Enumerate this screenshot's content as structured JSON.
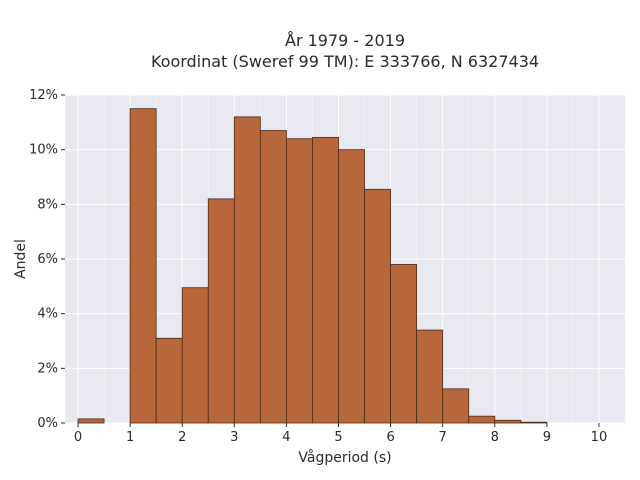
{
  "chart_data": {
    "type": "bar",
    "title_lines": [
      "År 1979 - 2019",
      "Koordinat (Sweref 99 TM): E 333766, N 6327434"
    ],
    "xlabel": "Vågperiod (s)",
    "ylabel": "Andel",
    "xlim": [
      -0.25,
      10.5
    ],
    "ylim": [
      0,
      12
    ],
    "x_ticks": [
      "0",
      "1",
      "2",
      "3",
      "4",
      "5",
      "6",
      "7",
      "8",
      "9",
      "10"
    ],
    "y_ticks": [
      "0%",
      "2%",
      "4%",
      "6%",
      "8%",
      "10%",
      "12%"
    ],
    "bin_width": 0.5,
    "bins": [
      {
        "x0": 0.0,
        "value": 0.15
      },
      {
        "x0": 1.0,
        "value": 11.5
      },
      {
        "x0": 1.5,
        "value": 3.1
      },
      {
        "x0": 2.0,
        "value": 4.95
      },
      {
        "x0": 2.5,
        "value": 8.2
      },
      {
        "x0": 3.0,
        "value": 11.2
      },
      {
        "x0": 3.5,
        "value": 10.7
      },
      {
        "x0": 4.0,
        "value": 10.4
      },
      {
        "x0": 4.5,
        "value": 10.45
      },
      {
        "x0": 5.0,
        "value": 10.0
      },
      {
        "x0": 5.5,
        "value": 8.55
      },
      {
        "x0": 6.0,
        "value": 5.8
      },
      {
        "x0": 6.5,
        "value": 3.4
      },
      {
        "x0": 7.0,
        "value": 1.25
      },
      {
        "x0": 7.5,
        "value": 0.25
      },
      {
        "x0": 8.0,
        "value": 0.1
      },
      {
        "x0": 8.5,
        "value": 0.03
      }
    ],
    "grid": true,
    "colors": {
      "bar_fill": "#b8673b",
      "bar_stroke": "#4a2a18",
      "plot_background": "#e8e8f1",
      "grid": "#ffffff"
    }
  }
}
